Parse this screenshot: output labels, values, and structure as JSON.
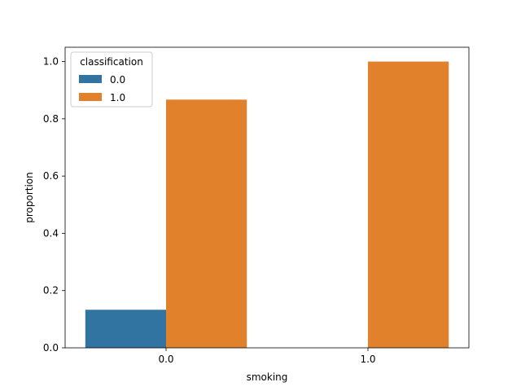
{
  "chart_data": {
    "type": "bar",
    "title": "",
    "xlabel": "smoking",
    "ylabel": "proportion",
    "categories": [
      "0.0",
      "1.0"
    ],
    "ylim": [
      0,
      1.05
    ],
    "yticks": [
      "0.0",
      "0.2",
      "0.4",
      "0.6",
      "0.8",
      "1.0"
    ],
    "legend": {
      "title": "classification",
      "placement": "top-left"
    },
    "series": [
      {
        "name": "0.0",
        "values": [
          0.133,
          0.0
        ],
        "color": "#3274a1"
      },
      {
        "name": "1.0",
        "values": [
          0.867,
          1.0
        ],
        "color": "#e1812c"
      }
    ],
    "grid": false
  }
}
